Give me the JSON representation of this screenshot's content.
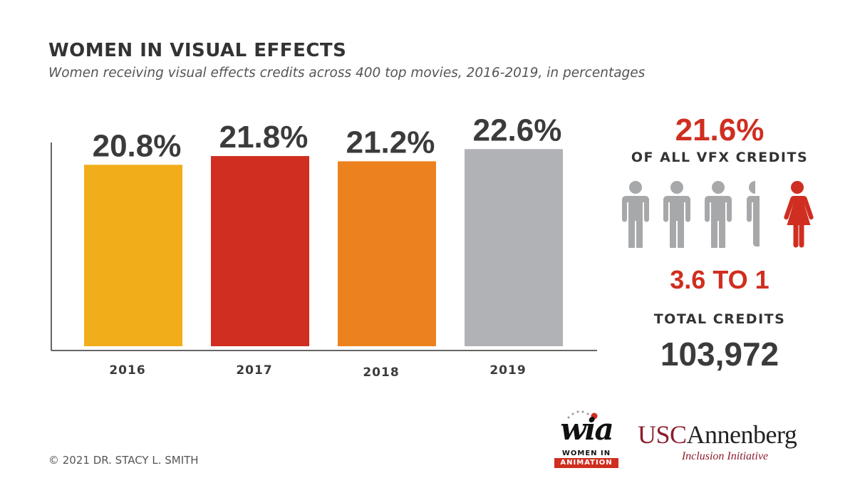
{
  "colors": {
    "accent": "#cf2e20",
    "bar_2016": "#f2ad1a",
    "bar_2017": "#cf2e20",
    "bar_2018": "#eb821e",
    "bar_2019": "#b1b2b5",
    "icon_gray": "#a7a8aa",
    "usc_cardinal": "#8c1d2c"
  },
  "chart_data": {
    "type": "bar",
    "title": "WOMEN IN VISUAL EFFECTS",
    "subtitle": "Women receiving visual effects credits across 400 top movies, 2016-2019, in percentages",
    "categories": [
      "2016",
      "2017",
      "2018",
      "2019"
    ],
    "values": [
      20.8,
      21.8,
      21.2,
      22.6
    ],
    "data_labels": [
      "20.8%",
      "21.8%",
      "21.2%",
      "22.6%"
    ],
    "xlabel": "",
    "ylabel": "",
    "ylim": [
      0,
      24.5
    ],
    "grid": false,
    "legend": "none"
  },
  "summary": {
    "overall_pct": "21.6%",
    "overall_caption": "OF ALL VFX CREDITS",
    "icons": [
      "male-figure",
      "male-figure",
      "male-figure",
      "partial-male-figure",
      "female-figure"
    ],
    "ratio_text": "3.6 TO 1",
    "total_caption": "TOTAL CREDITS",
    "total_value": "103,972"
  },
  "footer": {
    "copyright": "© 2021 DR. STACY L. SMITH",
    "wia_word": "wia",
    "wia_line1": "WOMEN IN",
    "wia_line2": "ANIMATION",
    "usc_main_a": "USC",
    "usc_main_b": "Annenberg",
    "usc_sub": "Inclusion Initiative"
  }
}
